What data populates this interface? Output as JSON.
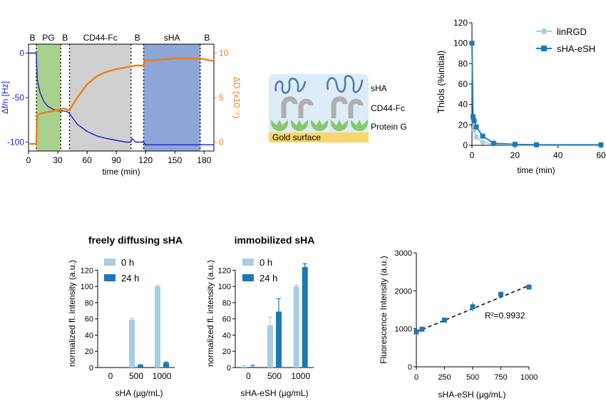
{
  "colors": {
    "blue_trace": "#1f1fd6",
    "orange_trace": "#f07f12",
    "pg_region": "#a9d18e",
    "cd44_region": "#d0d0d0",
    "sha_region": "#8ea6d8",
    "light_blue": "#a6cde3",
    "dark_blue": "#1f78b4",
    "gold": "#f5c518",
    "proteinG": "#86c96a",
    "cd44": "#b0b0b0",
    "sha_chain": "#4a78b5"
  },
  "chart_data": [
    {
      "id": "qcmd",
      "type": "line",
      "xlabel": "time (min)",
      "ylabel_left": "Δf/n [Hz]",
      "ylabel_right": "ΔD (x10⁻⁶)",
      "xlim": [
        0,
        190
      ],
      "ylim_left": [
        -110,
        10
      ],
      "ylim_right": [
        -1,
        11
      ],
      "xticks": [
        0,
        30,
        60,
        90,
        120,
        150,
        180
      ],
      "yticks_left": [
        0,
        -50,
        -100
      ],
      "yticks_right": [
        0,
        5,
        10
      ],
      "phases": [
        {
          "label": "B",
          "start": 0,
          "end": 8
        },
        {
          "label": "PG",
          "start": 8,
          "end": 33,
          "fill": "pg_region"
        },
        {
          "label": "B",
          "start": 33,
          "end": 42
        },
        {
          "label": "CD44-Fc",
          "start": 42,
          "end": 105,
          "fill": "cd44_region"
        },
        {
          "label": "B",
          "start": 105,
          "end": 118
        },
        {
          "label": "sHA",
          "start": 118,
          "end": 176,
          "fill": "sha_region"
        },
        {
          "label": "B",
          "start": 176,
          "end": 190
        }
      ],
      "series": [
        {
          "axis": "left",
          "color": "blue_trace",
          "x": [
            0,
            8,
            9,
            12,
            16,
            20,
            25,
            30,
            33,
            36,
            40,
            42,
            50,
            60,
            70,
            80,
            90,
            100,
            105,
            106,
            110,
            118,
            120,
            130,
            150,
            176,
            185,
            190
          ],
          "y": [
            0,
            0,
            -30,
            -45,
            -55,
            -60,
            -63,
            -65,
            -65,
            -65,
            -66,
            -68,
            -80,
            -88,
            -93,
            -96,
            -98,
            -100,
            -100,
            -96,
            -100,
            -100,
            -103,
            -103,
            -103,
            -103,
            -103,
            -103
          ]
        },
        {
          "axis": "right",
          "color": "orange_trace",
          "x": [
            0,
            8,
            9,
            12,
            16,
            20,
            25,
            30,
            33,
            36,
            40,
            42,
            50,
            60,
            70,
            80,
            90,
            100,
            105,
            110,
            118,
            119,
            130,
            150,
            176,
            185,
            190
          ],
          "y": [
            -0.2,
            -0.2,
            3.0,
            3.2,
            3.3,
            3.4,
            3.5,
            3.6,
            3.6,
            3.8,
            3.6,
            3.6,
            5.0,
            6.5,
            7.4,
            7.9,
            8.2,
            8.4,
            8.5,
            8.6,
            8.6,
            9.2,
            9.2,
            9.4,
            9.4,
            9.2,
            9.1
          ]
        }
      ]
    },
    {
      "id": "thiols",
      "type": "line",
      "xlabel": "time (min)",
      "ylabel": "Thiols (%initial)",
      "xlim": [
        0,
        60
      ],
      "ylim": [
        0,
        120
      ],
      "xticks": [
        0,
        20,
        40,
        60
      ],
      "yticks": [
        0,
        20,
        40,
        60,
        80,
        100,
        120
      ],
      "legend": "top-right",
      "series": [
        {
          "name": "linRGD",
          "color": "light_blue",
          "marker": "circle",
          "x": [
            0,
            0.5,
            1,
            2,
            5,
            10,
            20,
            30,
            60
          ],
          "y": [
            100,
            25,
            15,
            8,
            3,
            1,
            0.5,
            0.5,
            0.5
          ]
        },
        {
          "name": "sHA-eSH",
          "color": "dark_blue",
          "marker": "square",
          "x": [
            0,
            0.5,
            1,
            2,
            5,
            10,
            20,
            30,
            60
          ],
          "y": [
            100,
            28,
            24,
            18,
            9,
            2,
            1,
            0.5,
            0.5
          ]
        }
      ]
    },
    {
      "id": "freely",
      "type": "bar",
      "title": "freely diffusing sHA",
      "xlabel": "sHA (µg/mL)",
      "ylabel": "normalized fl. intensity (a.u.)",
      "ylim": [
        0,
        130
      ],
      "yticks": [
        0,
        20,
        40,
        60,
        80,
        100,
        120
      ],
      "categories": [
        "0",
        "500",
        "1000"
      ],
      "legend": "top-left",
      "series": [
        {
          "name": "0 h",
          "color": "light_blue",
          "values": [
            0,
            59,
            100
          ],
          "errors": [
            0,
            2,
            1
          ]
        },
        {
          "name": "24 h",
          "color": "dark_blue",
          "values": [
            0,
            3,
            6
          ],
          "errors": [
            0,
            0.5,
            0.8
          ]
        }
      ]
    },
    {
      "id": "immobilized",
      "type": "bar",
      "title": "immobilized sHA",
      "xlabel": "sHA-eSH (µg/mL)",
      "ylabel": "normalized fl. intensity (a.u.)",
      "ylim": [
        0,
        130
      ],
      "yticks": [
        0,
        20,
        40,
        60,
        80,
        100,
        120
      ],
      "categories": [
        "0",
        "500",
        "1000"
      ],
      "legend": "top-left",
      "series": [
        {
          "name": "0 h",
          "color": "light_blue",
          "values": [
            1,
            52,
            100
          ],
          "errors": [
            1,
            10,
            2
          ]
        },
        {
          "name": "24 h",
          "color": "dark_blue",
          "values": [
            1,
            69,
            124
          ],
          "errors": [
            2,
            16,
            4
          ]
        }
      ]
    },
    {
      "id": "calibration",
      "type": "scatter",
      "xlabel": "sHA-eSH (µg/mL)",
      "ylabel": "Fluorescence Intensity (a.u.)",
      "xlim": [
        0,
        1000
      ],
      "ylim": [
        0,
        3000
      ],
      "xticks": [
        0,
        250,
        500,
        750,
        1000
      ],
      "yticks": [
        0,
        1000,
        2000,
        3000
      ],
      "annotation": "R²=0.9932",
      "points": {
        "x": [
          0,
          50,
          250,
          500,
          750,
          1000
        ],
        "y": [
          920,
          990,
          1230,
          1580,
          1910,
          2100
        ],
        "errors": [
          40,
          30,
          40,
          120,
          50,
          30
        ]
      },
      "fit": {
        "x": [
          0,
          1000
        ],
        "y": [
          920,
          2140
        ]
      }
    }
  ],
  "schematic": {
    "labels": [
      "sHA",
      "CD44-Fc",
      "Protein G",
      "Gold surface"
    ]
  }
}
